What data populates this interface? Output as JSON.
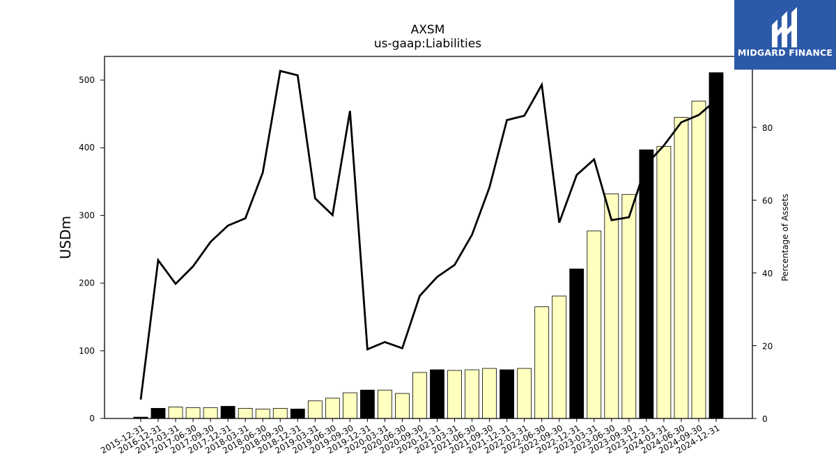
{
  "chart_data": {
    "type": "bar",
    "title": "AXSM",
    "subtitle": "us-gaap:Liabilities",
    "ylabel_left": "USDm",
    "ylabel_right": "Percentage of Assets",
    "ylim_left": [
      0,
      535
    ],
    "ylim_right": [
      0,
      99.5
    ],
    "yticks_left": [
      0,
      100,
      200,
      300,
      400,
      500
    ],
    "yticks_right": [
      0,
      20,
      40,
      60,
      80
    ],
    "categories": [
      "2015-12-31",
      "2016-12-31",
      "2017-03-31",
      "2017-06-30",
      "2017-09-30",
      "2017-12-31",
      "2018-03-31",
      "2018-06-30",
      "2018-09-30",
      "2018-12-31",
      "2019-03-31",
      "2019-06-30",
      "2019-09-30",
      "2019-12-31",
      "2020-03-31",
      "2020-06-30",
      "2020-09-30",
      "2020-12-31",
      "2021-03-31",
      "2021-06-30",
      "2021-09-30",
      "2021-12-31",
      "2022-03-31",
      "2022-06-30",
      "2022-09-30",
      "2022-12-31",
      "2023-03-31",
      "2023-06-30",
      "2023-09-30",
      "2023-12-31",
      "2024-03-31",
      "2024-06-30",
      "2024-09-30",
      "2024-12-31"
    ],
    "series": [
      {
        "kind": "bar",
        "axis": "left",
        "values": [
          2,
          15,
          17,
          16,
          16,
          18,
          15,
          14,
          15,
          14,
          26,
          30,
          38,
          42,
          42,
          37,
          68,
          72,
          71,
          72,
          74,
          72,
          74,
          165,
          181,
          221,
          277,
          332,
          331,
          397,
          402,
          445,
          469,
          511
        ],
        "annual": [
          true,
          true,
          false,
          false,
          false,
          true,
          false,
          false,
          false,
          true,
          false,
          false,
          false,
          true,
          false,
          false,
          false,
          true,
          false,
          false,
          false,
          true,
          false,
          false,
          false,
          true,
          false,
          false,
          false,
          true,
          false,
          false,
          false,
          true
        ],
        "color_annual": "#000000",
        "color_quarterly": "#ffffc0"
      },
      {
        "kind": "line",
        "axis": "right",
        "values": [
          5.2,
          43.5,
          37.0,
          41.8,
          48.5,
          53.0,
          55.0,
          67.6,
          95.5,
          94.3,
          60.5,
          55.9,
          84.5,
          19.0,
          21.0,
          19.3,
          33.7,
          38.9,
          42.2,
          50.5,
          63.5,
          82.0,
          83.2,
          91.7,
          53.8,
          66.9,
          71.2,
          54.5,
          55.3,
          69.8,
          75.0,
          81.4,
          83.4,
          87.5
        ],
        "color": "#000000"
      }
    ]
  },
  "logo": {
    "text": "MIDGARD FINANCE",
    "background": "#2d5aa8"
  }
}
